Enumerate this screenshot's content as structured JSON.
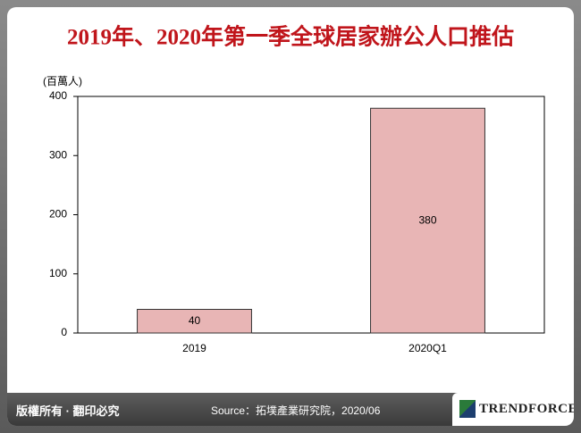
{
  "chart_data": {
    "type": "bar",
    "title": "2019年、2020年第一季全球居家辦公人口推估",
    "y_label": "(百萬人)",
    "categories": [
      "2019",
      "2020Q1"
    ],
    "values": [
      40,
      380
    ],
    "color": "#e8b5b5",
    "ylim": [
      0,
      400
    ],
    "yticks": [
      0,
      100,
      200,
      300,
      400
    ],
    "grid": false
  },
  "footer": {
    "copyright": "版權所有 · 翻印必究",
    "source": "Source：拓墣產業研究院，2020/06",
    "logo": "TRENDFORCE"
  }
}
